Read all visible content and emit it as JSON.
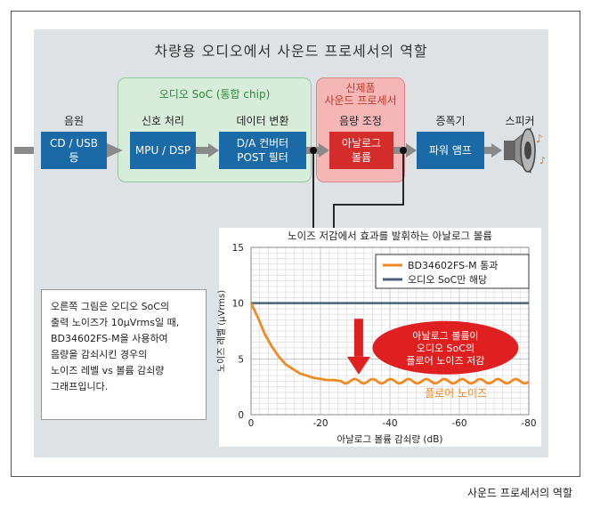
{
  "title": "차량용 오디오에서 사운드 프로세서의 역할",
  "soc_group": {
    "label": "오디오 SoC (통합 chip)"
  },
  "new_group": {
    "label_line1": "신제품",
    "label_line2": "사운드 프로세서"
  },
  "stages": [
    {
      "label": "음원",
      "block_line1": "CD / USB",
      "block_line2": "등"
    },
    {
      "label": "신호 처리",
      "block_line1": "MPU / DSP",
      "block_line2": ""
    },
    {
      "label": "데이터 변환",
      "block_line1": "D/A 컨버터",
      "block_line2": "POST 필터"
    },
    {
      "label": "음량 조정",
      "block_line1": "아날로그",
      "block_line2": "볼륨"
    },
    {
      "label": "증폭기",
      "block_line1": "파워 앰프",
      "block_line2": ""
    },
    {
      "label": "스피커"
    }
  ],
  "speaker_icon": "speaker-icon",
  "note": {
    "lines": [
      "오른쪽 그림은 오디오 SoC의",
      "출력 노이즈가 10μVrms일 때,",
      "BD34602FS-M을 사용하여",
      "음량을 감쇠시킨 경우의",
      "노이즈 레벨 vs 볼륨 감쇠량",
      "그래프입니다."
    ]
  },
  "chart_data": {
    "type": "line",
    "title": "노이즈 저감에서 효과를 발휘하는 아날로그 볼륨",
    "xlabel": "아날로그 볼륨 감쇠량 (dB)",
    "ylabel": "노이즈 레벨 (μVrms)",
    "xlim": [
      0,
      -80
    ],
    "ylim": [
      0,
      15
    ],
    "x_ticks": [
      "0",
      "-20",
      "-40",
      "-60",
      "-80"
    ],
    "y_ticks": [
      "0",
      "5",
      "10",
      "15"
    ],
    "grid": true,
    "legend_position": "top-right",
    "series": [
      {
        "name": "BD34602FS-M 통과",
        "color": "#f08a24",
        "x": [
          0,
          -2,
          -4,
          -6,
          -8,
          -10,
          -12,
          -14,
          -16,
          -18,
          -20,
          -22,
          -24,
          -26,
          -28,
          -30,
          -35,
          -40,
          -45,
          -50,
          -55,
          -60,
          -65,
          -70,
          -75,
          -80
        ],
        "y": [
          10,
          8.7,
          7.2,
          6.1,
          5.2,
          4.5,
          4.1,
          3.7,
          3.5,
          3.3,
          3.2,
          3.1,
          3.1,
          3.0,
          3.0,
          3.0,
          3.0,
          3.0,
          3.0,
          3.0,
          3.0,
          3.0,
          3.0,
          3.0,
          3.0,
          3.0
        ]
      },
      {
        "name": "오디오 SoC만 해당",
        "color": "#4a6378",
        "x": [
          0,
          -80
        ],
        "y": [
          10,
          10
        ]
      }
    ],
    "annotations": {
      "callout_line1": "아날로그 볼륨이",
      "callout_line2": "오디오 SoC의",
      "callout_line3": "플로어 노이즈 저감",
      "floor_label": "플로어 노이즈"
    }
  },
  "caption": "사운드 프로세서의 역할"
}
